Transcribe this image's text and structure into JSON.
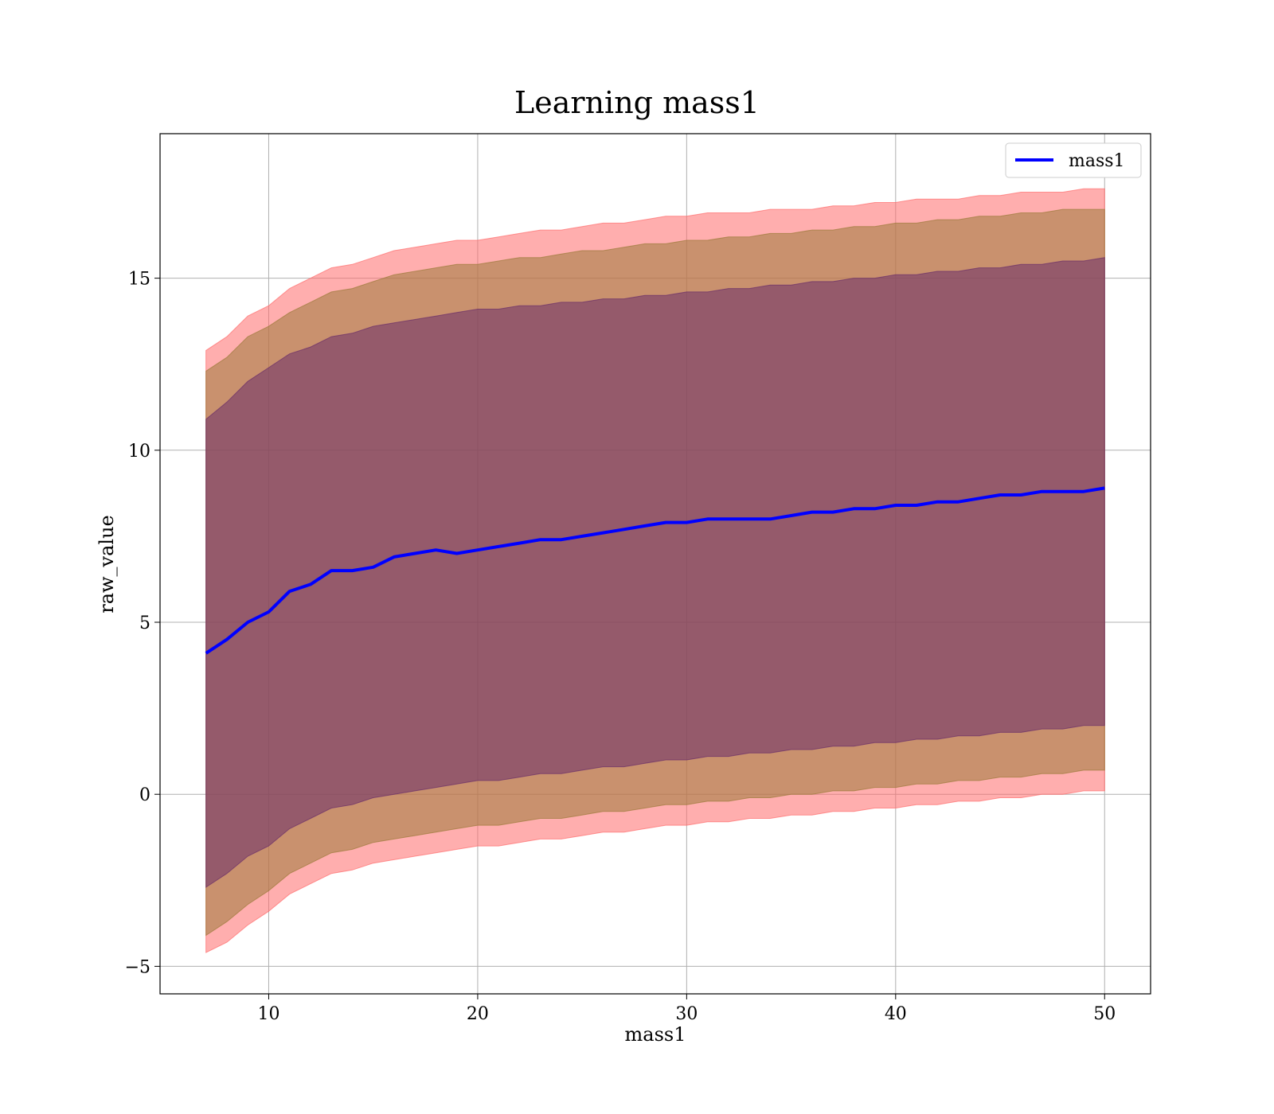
{
  "chart_data": {
    "type": "area",
    "title": "Learning mass1",
    "xlabel": "mass1",
    "ylabel": "raw_value",
    "xlim": [
      4.8,
      52.2
    ],
    "ylim": [
      -5.8,
      19.2
    ],
    "x_ticks": [
      10,
      20,
      30,
      40,
      50
    ],
    "y_ticks": [
      -5,
      0,
      5,
      10,
      15
    ],
    "x_tick_labels": [
      "10",
      "20",
      "30",
      "40",
      "50"
    ],
    "y_tick_labels": [
      "−5",
      "0",
      "5",
      "10",
      "15"
    ],
    "grid": true,
    "legend_position": "top-right",
    "x": [
      7,
      8,
      9,
      10,
      11,
      12,
      13,
      14,
      15,
      16,
      17,
      18,
      19,
      20,
      21,
      22,
      23,
      24,
      25,
      26,
      27,
      28,
      29,
      30,
      31,
      32,
      33,
      34,
      35,
      36,
      37,
      38,
      39,
      40,
      41,
      42,
      43,
      44,
      45,
      46,
      47,
      48,
      49,
      50
    ],
    "series": [
      {
        "name": "mass1",
        "kind": "line",
        "color": "#0000ff",
        "values": [
          4.1,
          4.5,
          5.0,
          5.3,
          5.9,
          6.1,
          6.5,
          6.5,
          6.6,
          6.9,
          7.0,
          7.1,
          7.0,
          7.1,
          7.2,
          7.3,
          7.4,
          7.4,
          7.5,
          7.6,
          7.7,
          7.8,
          7.9,
          7.9,
          8.0,
          8.0,
          8.0,
          8.0,
          8.1,
          8.2,
          8.2,
          8.3,
          8.3,
          8.4,
          8.4,
          8.5,
          8.5,
          8.6,
          8.7,
          8.7,
          8.8,
          8.8,
          8.8,
          8.9
        ]
      }
    ],
    "bands": [
      {
        "kind": "band",
        "color": "#ff6b6b",
        "upper": [
          12.9,
          13.3,
          13.9,
          14.2,
          14.7,
          15.0,
          15.3,
          15.4,
          15.6,
          15.8,
          15.9,
          16.0,
          16.1,
          16.1,
          16.2,
          16.3,
          16.4,
          16.4,
          16.5,
          16.6,
          16.6,
          16.7,
          16.8,
          16.8,
          16.9,
          16.9,
          16.9,
          17.0,
          17.0,
          17.0,
          17.1,
          17.1,
          17.2,
          17.2,
          17.3,
          17.3,
          17.3,
          17.4,
          17.4,
          17.5,
          17.5,
          17.5,
          17.6,
          17.6
        ],
        "lower": [
          -4.6,
          -4.3,
          -3.8,
          -3.4,
          -2.9,
          -2.6,
          -2.3,
          -2.2,
          -2.0,
          -1.9,
          -1.8,
          -1.7,
          -1.6,
          -1.5,
          -1.5,
          -1.4,
          -1.3,
          -1.3,
          -1.2,
          -1.1,
          -1.1,
          -1.0,
          -0.9,
          -0.9,
          -0.8,
          -0.8,
          -0.7,
          -0.7,
          -0.6,
          -0.6,
          -0.5,
          -0.5,
          -0.4,
          -0.4,
          -0.3,
          -0.3,
          -0.2,
          -0.2,
          -0.1,
          -0.1,
          0.0,
          0.0,
          0.1,
          0.1
        ]
      },
      {
        "kind": "band",
        "color": "#9c7a3a",
        "upper": [
          12.3,
          12.7,
          13.3,
          13.6,
          14.0,
          14.3,
          14.6,
          14.7,
          14.9,
          15.1,
          15.2,
          15.3,
          15.4,
          15.4,
          15.5,
          15.6,
          15.6,
          15.7,
          15.8,
          15.8,
          15.9,
          16.0,
          16.0,
          16.1,
          16.1,
          16.2,
          16.2,
          16.3,
          16.3,
          16.4,
          16.4,
          16.5,
          16.5,
          16.6,
          16.6,
          16.7,
          16.7,
          16.8,
          16.8,
          16.9,
          16.9,
          17.0,
          17.0,
          17.0
        ],
        "lower": [
          -4.1,
          -3.7,
          -3.2,
          -2.8,
          -2.3,
          -2.0,
          -1.7,
          -1.6,
          -1.4,
          -1.3,
          -1.2,
          -1.1,
          -1.0,
          -0.9,
          -0.9,
          -0.8,
          -0.7,
          -0.7,
          -0.6,
          -0.5,
          -0.5,
          -0.4,
          -0.3,
          -0.3,
          -0.2,
          -0.2,
          -0.1,
          -0.1,
          0.0,
          0.0,
          0.1,
          0.1,
          0.2,
          0.2,
          0.3,
          0.3,
          0.4,
          0.4,
          0.5,
          0.5,
          0.6,
          0.6,
          0.7,
          0.7
        ]
      },
      {
        "kind": "band",
        "color": "#6a2e6a",
        "upper": [
          10.9,
          11.4,
          12.0,
          12.4,
          12.8,
          13.0,
          13.3,
          13.4,
          13.6,
          13.7,
          13.8,
          13.9,
          14.0,
          14.1,
          14.1,
          14.2,
          14.2,
          14.3,
          14.3,
          14.4,
          14.4,
          14.5,
          14.5,
          14.6,
          14.6,
          14.7,
          14.7,
          14.8,
          14.8,
          14.9,
          14.9,
          15.0,
          15.0,
          15.1,
          15.1,
          15.2,
          15.2,
          15.3,
          15.3,
          15.4,
          15.4,
          15.5,
          15.5,
          15.6
        ],
        "lower": [
          -2.7,
          -2.3,
          -1.8,
          -1.5,
          -1.0,
          -0.7,
          -0.4,
          -0.3,
          -0.1,
          0.0,
          0.1,
          0.2,
          0.3,
          0.4,
          0.4,
          0.5,
          0.6,
          0.6,
          0.7,
          0.8,
          0.8,
          0.9,
          1.0,
          1.0,
          1.1,
          1.1,
          1.2,
          1.2,
          1.3,
          1.3,
          1.4,
          1.4,
          1.5,
          1.5,
          1.6,
          1.6,
          1.7,
          1.7,
          1.8,
          1.8,
          1.9,
          1.9,
          2.0,
          2.0
        ]
      }
    ]
  }
}
